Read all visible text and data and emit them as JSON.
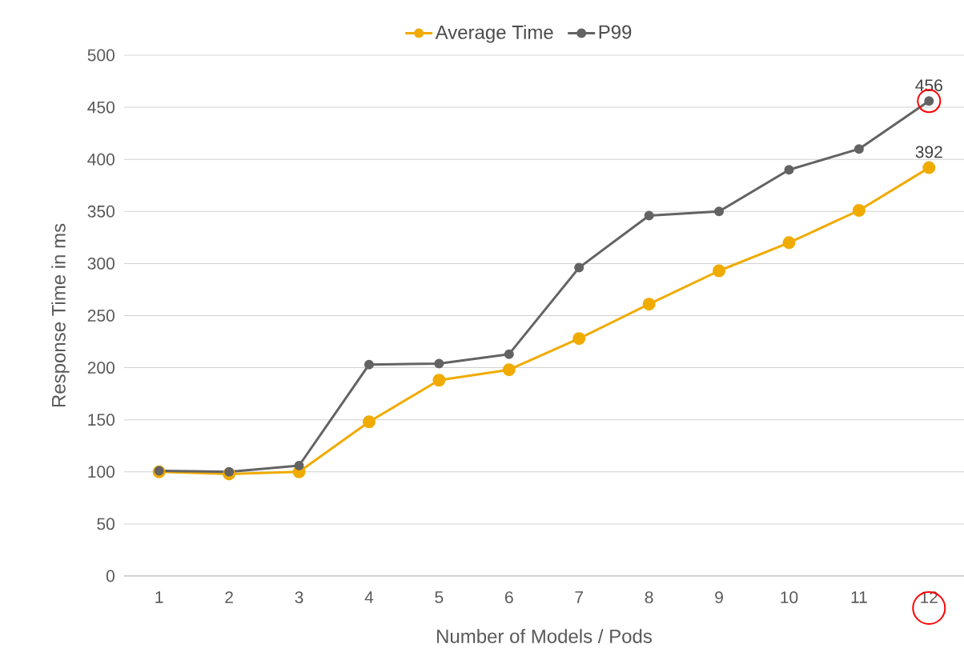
{
  "chart_data": {
    "type": "line",
    "xlabel": "Number of Models / Pods",
    "ylabel": "Response Time in ms",
    "categories": [
      "1",
      "2",
      "3",
      "4",
      "5",
      "6",
      "7",
      "8",
      "9",
      "10",
      "11",
      "12"
    ],
    "series": [
      {
        "name": "Average Time",
        "color": "#f0ab00",
        "values": [
          100,
          98,
          100,
          148,
          188,
          198,
          228,
          261,
          293,
          320,
          351,
          392
        ],
        "value_labels": [
          null,
          null,
          null,
          null,
          null,
          null,
          null,
          null,
          null,
          null,
          null,
          "392"
        ]
      },
      {
        "name": "P99",
        "color": "#636363",
        "values": [
          101,
          100,
          106,
          203,
          204,
          213,
          296,
          346,
          350,
          390,
          410,
          456
        ],
        "value_labels": [
          null,
          null,
          null,
          null,
          null,
          null,
          null,
          null,
          null,
          null,
          null,
          "456"
        ]
      }
    ],
    "ylim": [
      0,
      500
    ],
    "yticks": [
      0,
      50,
      100,
      150,
      200,
      250,
      300,
      350,
      400,
      450,
      500
    ],
    "grid": "y",
    "legend": "top",
    "marker": "circle",
    "line_style": "solid"
  }
}
